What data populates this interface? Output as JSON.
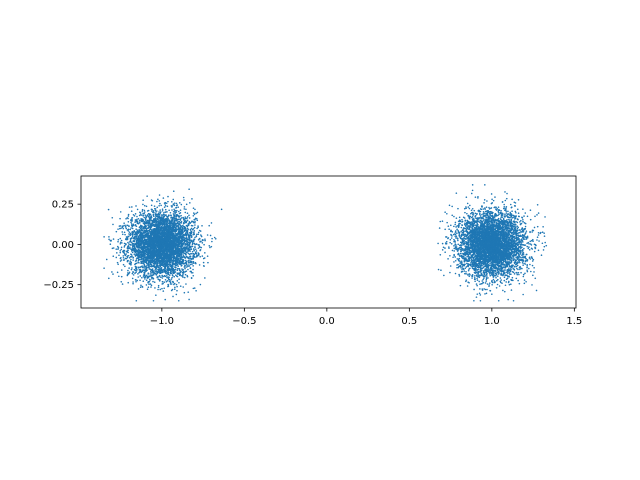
{
  "chart_data": {
    "type": "scatter",
    "title": "",
    "xlabel": "",
    "ylabel": "",
    "xlim": [
      -1.49,
      1.51
    ],
    "ylim": [
      -0.395,
      0.425
    ],
    "xticks": [
      -1.0,
      -0.5,
      0.0,
      0.5,
      1.0,
      1.5
    ],
    "xtick_labels": [
      "−1.0",
      "−0.5",
      "0.0",
      "0.5",
      "1.0",
      "1.5"
    ],
    "yticks": [
      -0.25,
      0.0,
      0.25
    ],
    "ytick_labels": [
      "−0.25",
      "0.00",
      "0.25"
    ],
    "grid": false,
    "legend": "none",
    "aspect": "equal",
    "marker_color": "#1f77b4",
    "series": [
      {
        "cluster_center": [
          -1.0,
          0.0
        ],
        "cluster_spread_std": 0.1,
        "x_range": [
          -1.35,
          -0.62
        ],
        "y_range": [
          -0.35,
          0.39
        ]
      },
      {
        "cluster_center": [
          1.0,
          0.0
        ],
        "cluster_spread_std": 0.1,
        "x_range": [
          0.65,
          1.41
        ],
        "y_range": [
          -0.35,
          0.37
        ]
      }
    ]
  }
}
